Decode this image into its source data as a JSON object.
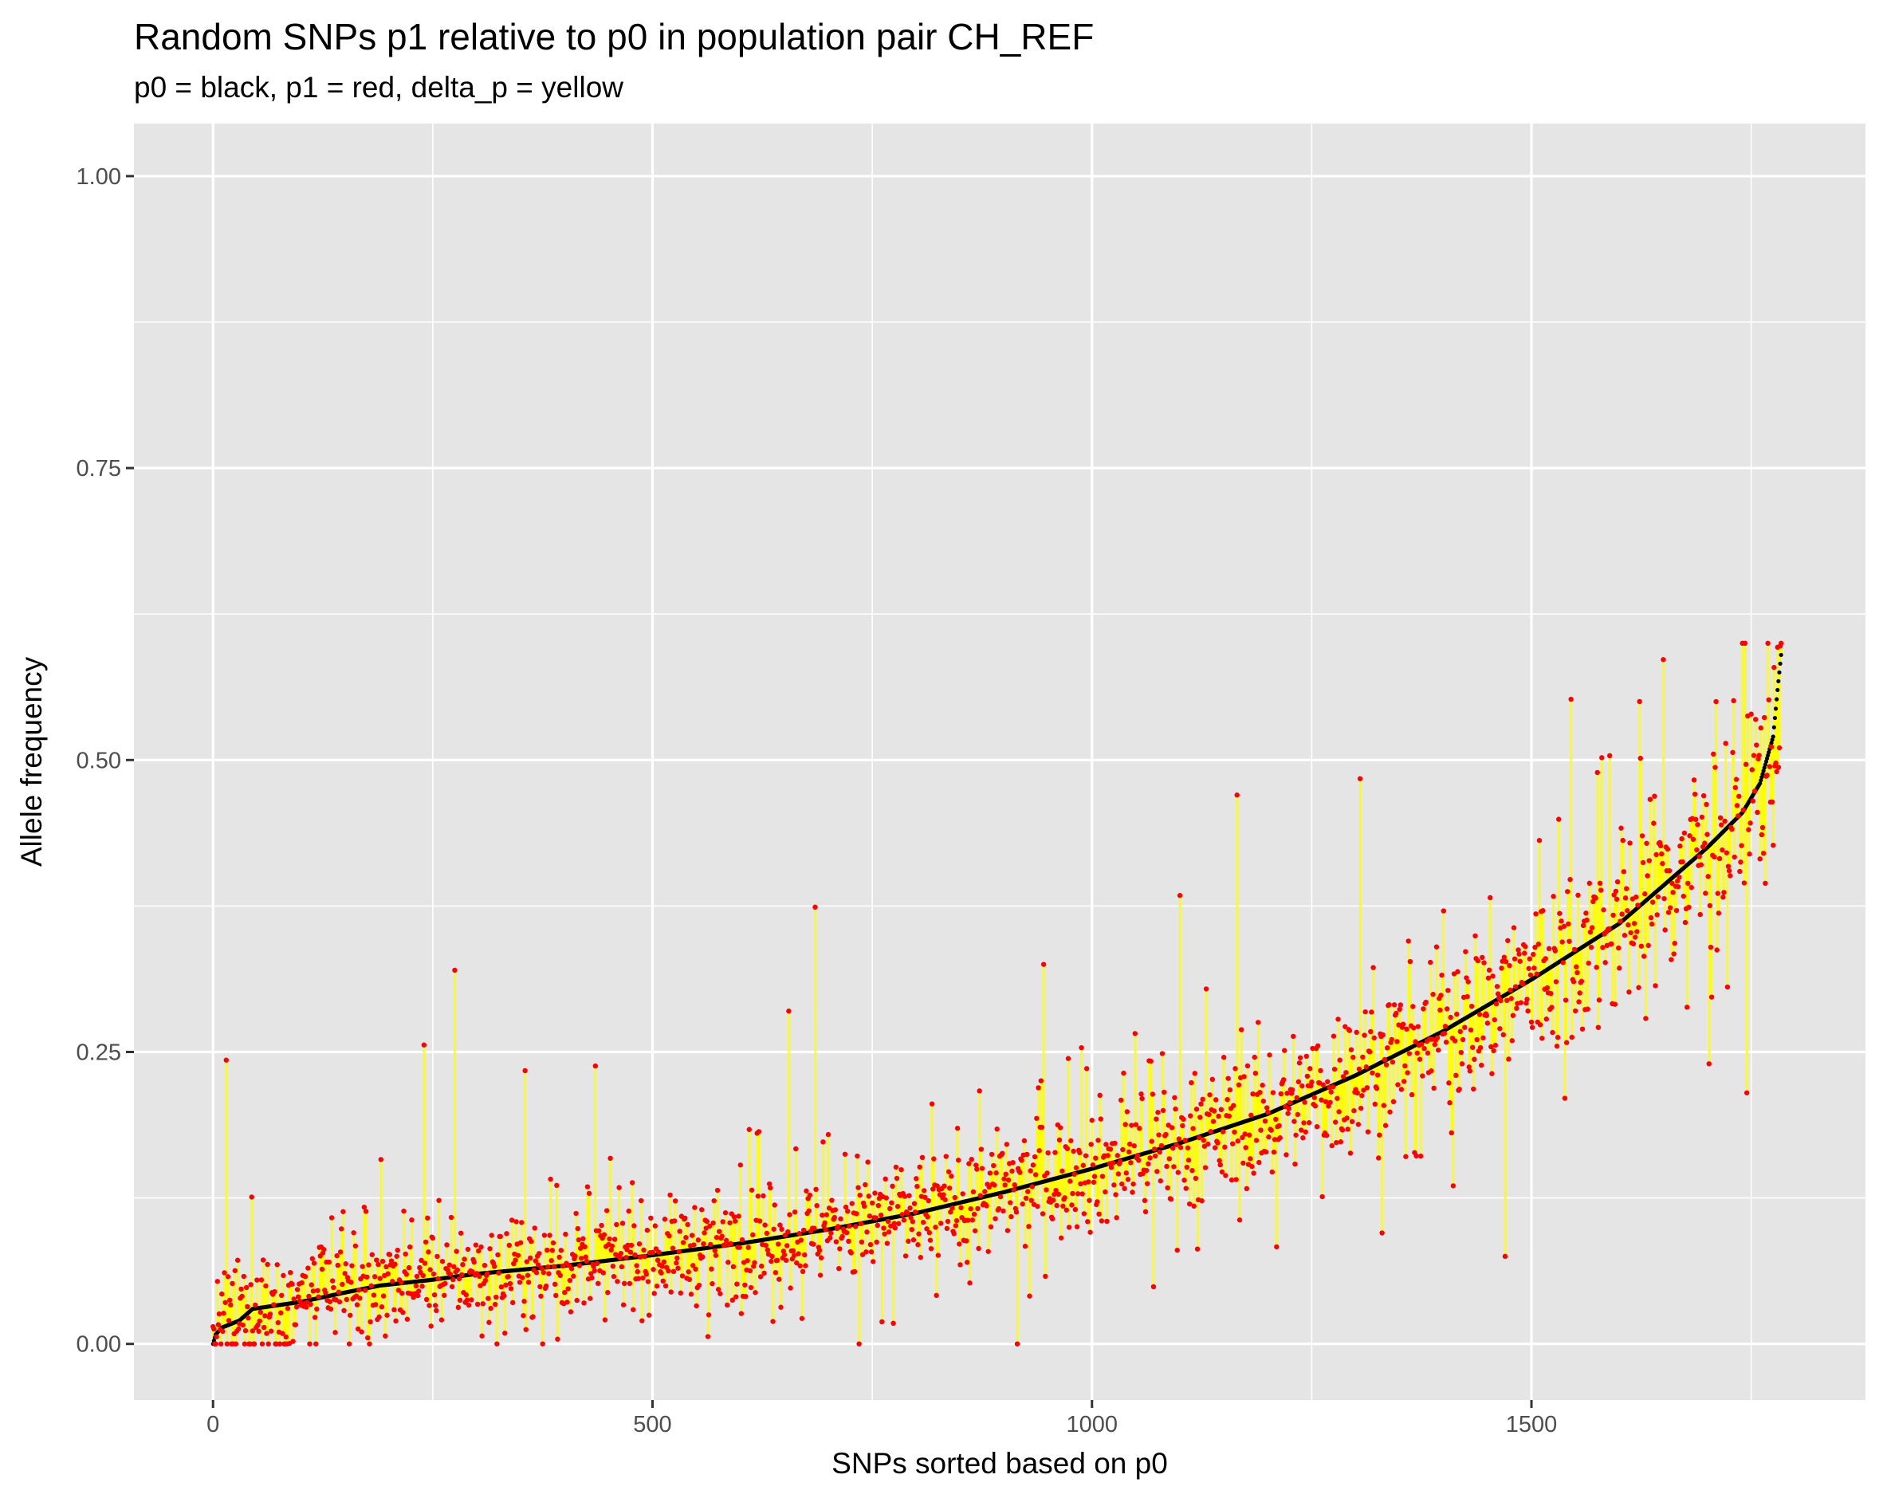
{
  "chart_data": {
    "type": "scatter",
    "title": "Random SNPs p1 relative to p0 in population pair CH_REF",
    "subtitle": "p0 = black, p1 = red, delta_p = yellow",
    "xlabel": "SNPs sorted based on p0",
    "ylabel": "Allele frequency",
    "xlim": [
      -90,
      1880
    ],
    "ylim": [
      -0.048,
      1.045
    ],
    "x_ticks": [
      0,
      500,
      1000,
      1500
    ],
    "x_tick_labels": [
      "0",
      "500",
      "1000",
      "1500"
    ],
    "y_ticks": [
      0.0,
      0.25,
      0.5,
      0.75,
      1.0
    ],
    "y_tick_labels": [
      "0.00",
      "0.25",
      "0.50",
      "0.75",
      "1.00"
    ],
    "grid": true,
    "n_snps": 1785,
    "colors": {
      "p0": "#000000",
      "p1": "#ff0000",
      "delta_p": "#ffff00",
      "panel": "#e5e5e5",
      "grid": "#ffffff"
    },
    "p0_curve": [
      [
        0,
        0.0
      ],
      [
        3,
        0.008
      ],
      [
        10,
        0.014
      ],
      [
        30,
        0.02
      ],
      [
        45,
        0.03
      ],
      [
        100,
        0.036
      ],
      [
        150,
        0.044
      ],
      [
        190,
        0.05
      ],
      [
        250,
        0.055
      ],
      [
        300,
        0.06
      ],
      [
        400,
        0.067
      ],
      [
        500,
        0.076
      ],
      [
        600,
        0.086
      ],
      [
        700,
        0.098
      ],
      [
        800,
        0.112
      ],
      [
        900,
        0.13
      ],
      [
        1000,
        0.15
      ],
      [
        1100,
        0.172
      ],
      [
        1200,
        0.197
      ],
      [
        1300,
        0.23
      ],
      [
        1400,
        0.268
      ],
      [
        1500,
        0.312
      ],
      [
        1600,
        0.36
      ],
      [
        1700,
        0.425
      ],
      [
        1740,
        0.455
      ],
      [
        1760,
        0.48
      ],
      [
        1775,
        0.52
      ],
      [
        1780,
        0.56
      ],
      [
        1784,
        0.59
      ],
      [
        1785,
        0.62
      ]
    ],
    "p1_notable": [
      [
        15,
        0.243
      ],
      [
        275,
        0.32
      ],
      [
        240,
        0.256
      ],
      [
        355,
        0.234
      ],
      [
        435,
        0.238
      ],
      [
        685,
        0.374
      ],
      [
        655,
        0.285
      ],
      [
        945,
        0.325
      ],
      [
        1100,
        0.384
      ],
      [
        1165,
        0.47
      ],
      [
        1305,
        0.484
      ],
      [
        1470,
        0.535
      ],
      [
        1545,
        0.552
      ],
      [
        1650,
        0.586
      ],
      [
        1710,
        0.55
      ],
      [
        1580,
        0.502
      ],
      [
        1745,
        0.215
      ],
      [
        1470,
        0.075
      ],
      [
        1330,
        0.095
      ],
      [
        735,
        0.0
      ],
      [
        915,
        0.0
      ]
    ]
  }
}
